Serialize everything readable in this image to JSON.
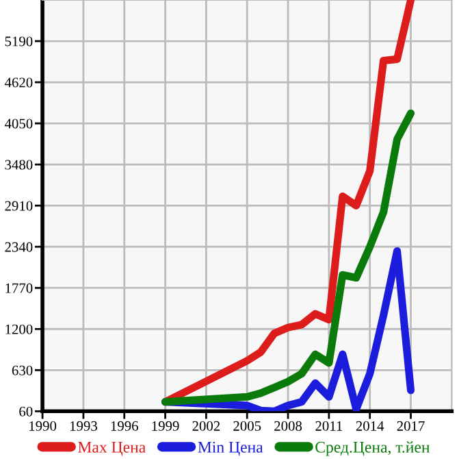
{
  "chart_data": {
    "type": "line",
    "xlim": [
      1990,
      2020
    ],
    "xticks": [
      1990,
      1993,
      1996,
      1999,
      2002,
      2005,
      2008,
      2011,
      2014,
      2017
    ],
    "ylim": [
      60,
      5760
    ],
    "yticks": [
      60,
      630,
      1200,
      1770,
      2340,
      2910,
      3480,
      4050,
      4620,
      5190
    ],
    "grid": true,
    "legend": "bottom",
    "marker": "none",
    "line_style": "solid",
    "series": [
      {
        "name": "Max Цена",
        "color": "#dd1c1c",
        "x": [
          1999,
          2005,
          2006,
          2007,
          2008,
          2009,
          2010,
          2011,
          2012,
          2013,
          2014,
          2015,
          2016,
          2017
        ],
        "values": [
          190,
          760,
          880,
          1140,
          1220,
          1260,
          1410,
          1330,
          3040,
          2910,
          3390,
          4920,
          4940,
          5760
        ]
      },
      {
        "name": "Min Цена",
        "color": "#1c1cdd",
        "x": [
          1999,
          2005,
          2006,
          2007,
          2008,
          2009,
          2010,
          2011,
          2012,
          2013,
          2014,
          2015,
          2016,
          2017
        ],
        "values": [
          190,
          140,
          70,
          60,
          140,
          190,
          450,
          260,
          850,
          90,
          580,
          1390,
          2280,
          350
        ]
      },
      {
        "name": "Сред.Цена, т.йен",
        "color": "#0a7a0a",
        "x": [
          1999,
          2005,
          2006,
          2007,
          2008,
          2009,
          2010,
          2011,
          2012,
          2013,
          2014,
          2015,
          2016,
          2017
        ],
        "values": [
          190,
          260,
          310,
          390,
          470,
          580,
          850,
          730,
          1950,
          1910,
          2340,
          2820,
          3830,
          4190
        ]
      }
    ]
  }
}
